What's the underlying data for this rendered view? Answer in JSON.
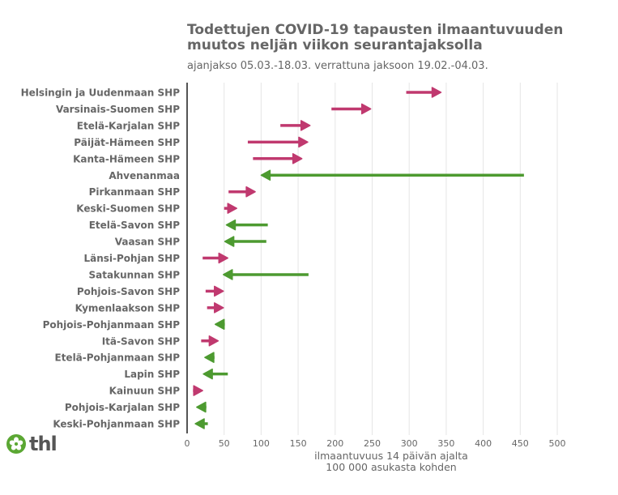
{
  "chart_data": {
    "type": "arrow-dumbbell",
    "title": "Todettujen COVID-19 tapausten ilmaantuvuuden muutos neljän viikon seurantajaksolla",
    "subtitle": "ajanjakso 05.03.-18.03. verrattuna jaksoon 19.02.-04.03.",
    "xlabel": "ilmaantuvuus 14 päivän ajalta\n100 000 asukasta kohden",
    "xlabel_lines": [
      "ilmaantuvuus 14 päivän ajalta",
      "100 000 asukasta kohden"
    ],
    "xlim": [
      0,
      500
    ],
    "xticks": [
      0,
      50,
      100,
      150,
      200,
      250,
      300,
      350,
      400,
      450,
      500
    ],
    "grid": true,
    "colors": {
      "increase": "#c0396f",
      "decrease": "#4d9a30",
      "axis": "#555555",
      "grid": "#e5e5e5"
    },
    "series": [
      {
        "name": "Helsingin ja Uudenmaan SHP",
        "previous": 296,
        "current": 343
      },
      {
        "name": "Varsinais-Suomen SHP",
        "previous": 195,
        "current": 248
      },
      {
        "name": "Etelä-Karjalan SHP",
        "previous": 126,
        "current": 166
      },
      {
        "name": "Päijät-Hämeen SHP",
        "previous": 82,
        "current": 163
      },
      {
        "name": "Kanta-Hämeen SHP",
        "previous": 89,
        "current": 155
      },
      {
        "name": "Ahvenanmaa",
        "previous": 455,
        "current": 100
      },
      {
        "name": "Pirkanmaan SHP",
        "previous": 56,
        "current": 92
      },
      {
        "name": "Keski-Suomen SHP",
        "previous": 50,
        "current": 67
      },
      {
        "name": "Etelä-Savon SHP",
        "previous": 109,
        "current": 53
      },
      {
        "name": "Vaasan SHP",
        "previous": 107,
        "current": 51
      },
      {
        "name": "Länsi-Pohjan SHP",
        "previous": 21,
        "current": 55
      },
      {
        "name": "Satakunnan SHP",
        "previous": 164,
        "current": 49
      },
      {
        "name": "Pohjois-Savon SHP",
        "previous": 25,
        "current": 49
      },
      {
        "name": "Kymenlaakson SHP",
        "previous": 27,
        "current": 49
      },
      {
        "name": "Pohjois-Pohjanmaan SHP",
        "previous": 51,
        "current": 38
      },
      {
        "name": "Itä-Savon SHP",
        "previous": 19,
        "current": 42
      },
      {
        "name": "Etelä-Pohjanmaan SHP",
        "previous": 37,
        "current": 24
      },
      {
        "name": "Lapin SHP",
        "previous": 55,
        "current": 22
      },
      {
        "name": "Kainuun SHP",
        "previous": 8,
        "current": 21
      },
      {
        "name": "Pohjois-Karjalan SHP",
        "previous": 26,
        "current": 13
      },
      {
        "name": "Keski-Pohjanmaan SHP",
        "previous": 28,
        "current": 11
      }
    ]
  },
  "logo": {
    "text": "thl",
    "icon": "flower-icon",
    "color": "#5ba733"
  }
}
